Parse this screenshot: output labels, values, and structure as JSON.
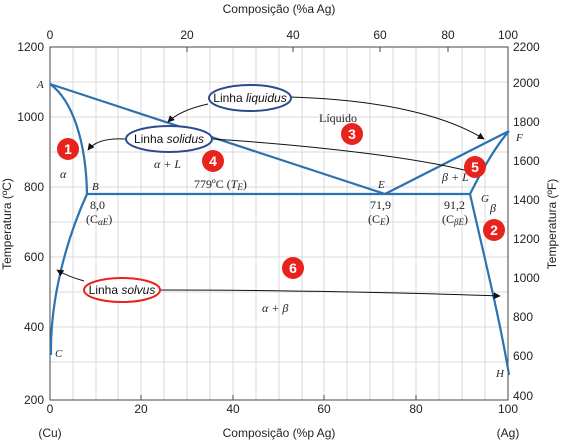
{
  "axes": {
    "top_title": "Composição (%a Ag)",
    "bottom_title": "Composição (%p Ag)",
    "left_title": "Temperatura (ºC)",
    "right_title": "Temperatura (ºF)",
    "top_ticks": [
      "0",
      "20",
      "40",
      "60",
      "80",
      "100"
    ],
    "bottom_ticks": [
      "0",
      "20",
      "40",
      "60",
      "80",
      "100"
    ],
    "left_ticks": [
      "1200",
      "1000",
      "800",
      "600",
      "400",
      "200"
    ],
    "right_ticks": [
      "2200",
      "2000",
      "1800",
      "1600",
      "1400",
      "1200",
      "1000",
      "800",
      "600",
      "400"
    ],
    "left_end": "(Cu)",
    "right_end": "(Ag)"
  },
  "points": {
    "A": "A",
    "B": "B",
    "C": "C",
    "E": "E",
    "F": "F",
    "G": "G",
    "H": "H"
  },
  "phases": {
    "liquid": "Líquido",
    "alpha": "α",
    "beta": "β",
    "alpha_L": "α + L",
    "beta_L": "β + L",
    "alpha_beta": "α + β"
  },
  "labels": {
    "eutectic_temp": "779ºC (",
    "eutectic_temp_sym": "T",
    "eutectic_temp_sub": "E",
    "b_comp": "8,0",
    "b_comp_sym": "(C",
    "b_comp_sub": "αE",
    "e_comp": "71,9",
    "e_comp_sym": "(C",
    "e_comp_sub": "E",
    "g_comp": "91,2",
    "g_comp_sym": "(C",
    "g_comp_sub": "βE"
  },
  "callouts": {
    "liquidus_prefix": "Linha ",
    "liquidus_word": "liquidus",
    "solidus_prefix": "Linha ",
    "solidus_word": "solidus",
    "solvus_prefix": "Linha ",
    "solvus_word": "solvus"
  },
  "badges": [
    "1",
    "2",
    "3",
    "4",
    "5",
    "6"
  ],
  "colors": {
    "curve": "#2b72b0",
    "grid": "#d9d9d9",
    "badge": "#e8231d",
    "callout_blue": "#2b4b8c",
    "callout_red": "#e8231d"
  }
}
